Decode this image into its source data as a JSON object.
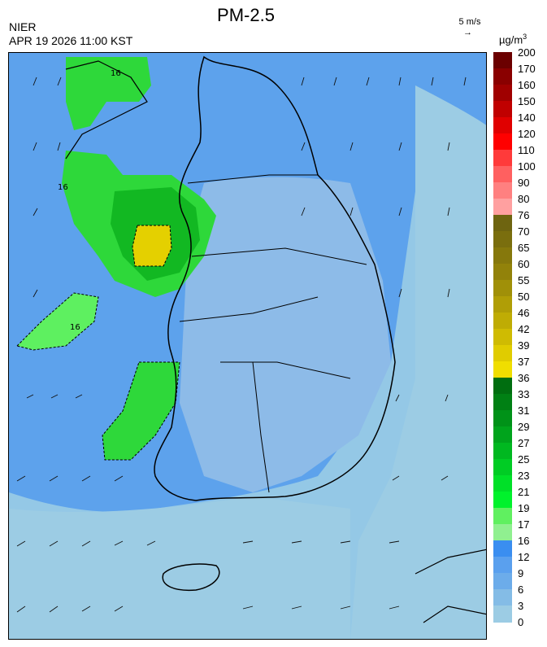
{
  "header": {
    "title": "PM-2.5",
    "agency": "NIER",
    "datetime": "APR 19 2026 11:00 KST",
    "wind_scale_label": "5 m/s",
    "wind_scale_arrow": "→",
    "unit_prefix": "µg/m",
    "unit_exp": "3"
  },
  "colorbar": {
    "labels": [
      "200",
      "170",
      "160",
      "150",
      "140",
      "120",
      "110",
      "100",
      "90",
      "80",
      "76",
      "70",
      "65",
      "60",
      "55",
      "50",
      "46",
      "42",
      "39",
      "37",
      "36",
      "33",
      "31",
      "29",
      "27",
      "25",
      "23",
      "21",
      "19",
      "17",
      "16",
      "12",
      "9",
      "6",
      "3",
      "0"
    ],
    "colors": [
      "#6b0000",
      "#8a0000",
      "#a00000",
      "#c00000",
      "#e00000",
      "#ff0000",
      "#ff3a3a",
      "#ff6060",
      "#ff8080",
      "#ffa0a0",
      "#6e6410",
      "#7a6e0e",
      "#86780c",
      "#92820a",
      "#a09008",
      "#b09e06",
      "#bfac04",
      "#cfbb02",
      "#e0cc00",
      "#f0de00",
      "#006e10",
      "#008014",
      "#009218",
      "#00a41c",
      "#00b820",
      "#00cc24",
      "#00e028",
      "#00f22c",
      "#60f060",
      "#90f090",
      "#3a8ef0",
      "#5aa0ee",
      "#6cacea",
      "#84bce6",
      "#9ccce4"
    ]
  },
  "map": {
    "land_labels": [
      "16",
      "16",
      "16"
    ],
    "legend_values_note": ""
  }
}
